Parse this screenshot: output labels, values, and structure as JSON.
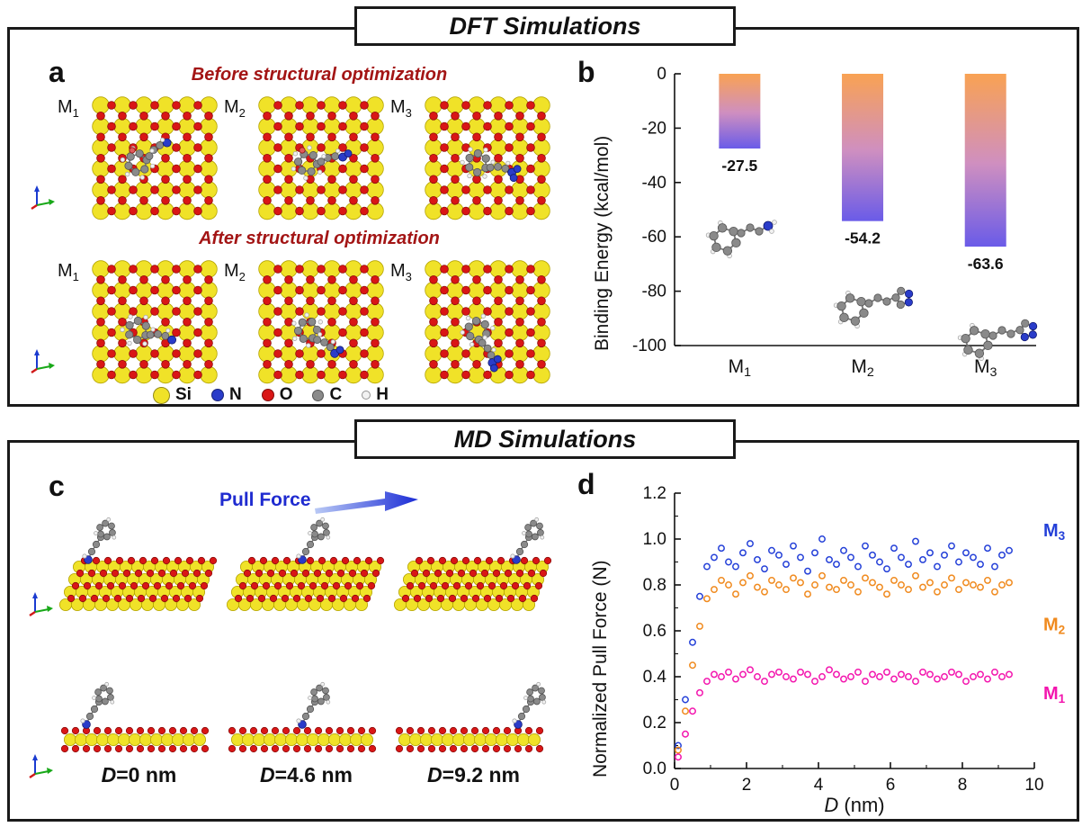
{
  "figure": {
    "dft": {
      "title": "DFT Simulations",
      "panel_a": {
        "label": "a",
        "before_title": "Before structural optimization",
        "after_title": "After structural optimization",
        "row_labels": [
          "M1",
          "M2",
          "M3"
        ],
        "legend": [
          {
            "element": "Si",
            "color": "#f0e228"
          },
          {
            "element": "N",
            "color": "#2a3cc9"
          },
          {
            "element": "O",
            "color": "#d91616"
          },
          {
            "element": "C",
            "color": "#8a8a8a"
          },
          {
            "element": "H",
            "color": "#f2f2f2"
          }
        ]
      },
      "panel_b": {
        "label": "b"
      }
    },
    "md": {
      "title": "MD Simulations",
      "panel_c": {
        "label": "c",
        "pull_force_label": "Pull Force",
        "snapshots": [
          {
            "prefix": "D",
            "suffix": "=0 nm"
          },
          {
            "prefix": "D",
            "suffix": "=4.6 nm"
          },
          {
            "prefix": "D",
            "suffix": "=9.2 nm"
          }
        ]
      },
      "panel_d": {
        "label": "d"
      }
    }
  },
  "chart_data": [
    {
      "type": "bar",
      "categories": [
        "M1",
        "M2",
        "M3"
      ],
      "values": [
        -27.5,
        -54.2,
        -63.6
      ],
      "data_labels": [
        "-27.5",
        "-54.2",
        "-63.6"
      ],
      "ylabel": "Binding Energy (kcal/mol)",
      "ylim": [
        -100,
        0
      ],
      "yticks": [
        0,
        -20,
        -40,
        -60,
        -80,
        -100
      ],
      "bar_gradient": {
        "top": "#f9a253",
        "mid": "#cf8fc0",
        "bottom": "#6a5be8"
      },
      "grid": false
    },
    {
      "type": "scatter",
      "xlabel": "D (nm)",
      "ylabel": "Normalized Pull Force (N)",
      "xlim": [
        0,
        10
      ],
      "ylim": [
        0,
        1.2
      ],
      "xticks": [
        0,
        2,
        4,
        6,
        8,
        10
      ],
      "yticks": [
        0,
        0.2,
        0.4,
        0.6,
        0.8,
        1,
        1.2
      ],
      "marker": "open-circle",
      "grid": false,
      "x": [
        0.1,
        0.3,
        0.5,
        0.7,
        0.9,
        1.1,
        1.3,
        1.5,
        1.7,
        1.9,
        2.1,
        2.3,
        2.5,
        2.7,
        2.9,
        3.1,
        3.3,
        3.5,
        3.7,
        3.9,
        4.1,
        4.3,
        4.5,
        4.7,
        4.9,
        5.1,
        5.3,
        5.5,
        5.7,
        5.9,
        6.1,
        6.3,
        6.5,
        6.7,
        6.9,
        7.1,
        7.3,
        7.5,
        7.7,
        7.9,
        8.1,
        8.3,
        8.5,
        8.7,
        8.9,
        9.1,
        9.3
      ],
      "series": [
        {
          "name": "M3",
          "color": "#2440d8",
          "plateau": 0.93,
          "label_y": 1.04,
          "values": [
            0.1,
            0.3,
            0.55,
            0.75,
            0.88,
            0.92,
            0.96,
            0.9,
            0.88,
            0.94,
            0.98,
            0.91,
            0.87,
            0.95,
            0.93,
            0.89,
            0.97,
            0.92,
            0.86,
            0.94,
            1.0,
            0.91,
            0.89,
            0.95,
            0.92,
            0.88,
            0.97,
            0.93,
            0.9,
            0.87,
            0.96,
            0.92,
            0.89,
            0.99,
            0.91,
            0.94,
            0.88,
            0.93,
            0.97,
            0.9,
            0.94,
            0.92,
            0.89,
            0.96,
            0.88,
            0.93,
            0.95
          ]
        },
        {
          "name": "M2",
          "color": "#f08a1e",
          "plateau": 0.8,
          "label_y": 0.63,
          "values": [
            0.08,
            0.25,
            0.45,
            0.62,
            0.74,
            0.78,
            0.82,
            0.8,
            0.76,
            0.81,
            0.84,
            0.79,
            0.77,
            0.82,
            0.8,
            0.78,
            0.83,
            0.81,
            0.76,
            0.8,
            0.84,
            0.79,
            0.78,
            0.82,
            0.8,
            0.77,
            0.83,
            0.81,
            0.79,
            0.76,
            0.82,
            0.8,
            0.78,
            0.84,
            0.79,
            0.81,
            0.77,
            0.8,
            0.83,
            0.78,
            0.81,
            0.8,
            0.79,
            0.82,
            0.77,
            0.8,
            0.81
          ]
        },
        {
          "name": "M1",
          "color": "#f316ae",
          "plateau": 0.4,
          "label_y": 0.33,
          "values": [
            0.05,
            0.15,
            0.25,
            0.33,
            0.38,
            0.41,
            0.4,
            0.42,
            0.39,
            0.41,
            0.43,
            0.4,
            0.38,
            0.41,
            0.42,
            0.4,
            0.39,
            0.42,
            0.41,
            0.38,
            0.4,
            0.43,
            0.41,
            0.39,
            0.4,
            0.42,
            0.38,
            0.41,
            0.4,
            0.42,
            0.39,
            0.41,
            0.4,
            0.38,
            0.42,
            0.41,
            0.39,
            0.4,
            0.42,
            0.41,
            0.38,
            0.4,
            0.41,
            0.39,
            0.42,
            0.4,
            0.41
          ]
        }
      ]
    }
  ]
}
